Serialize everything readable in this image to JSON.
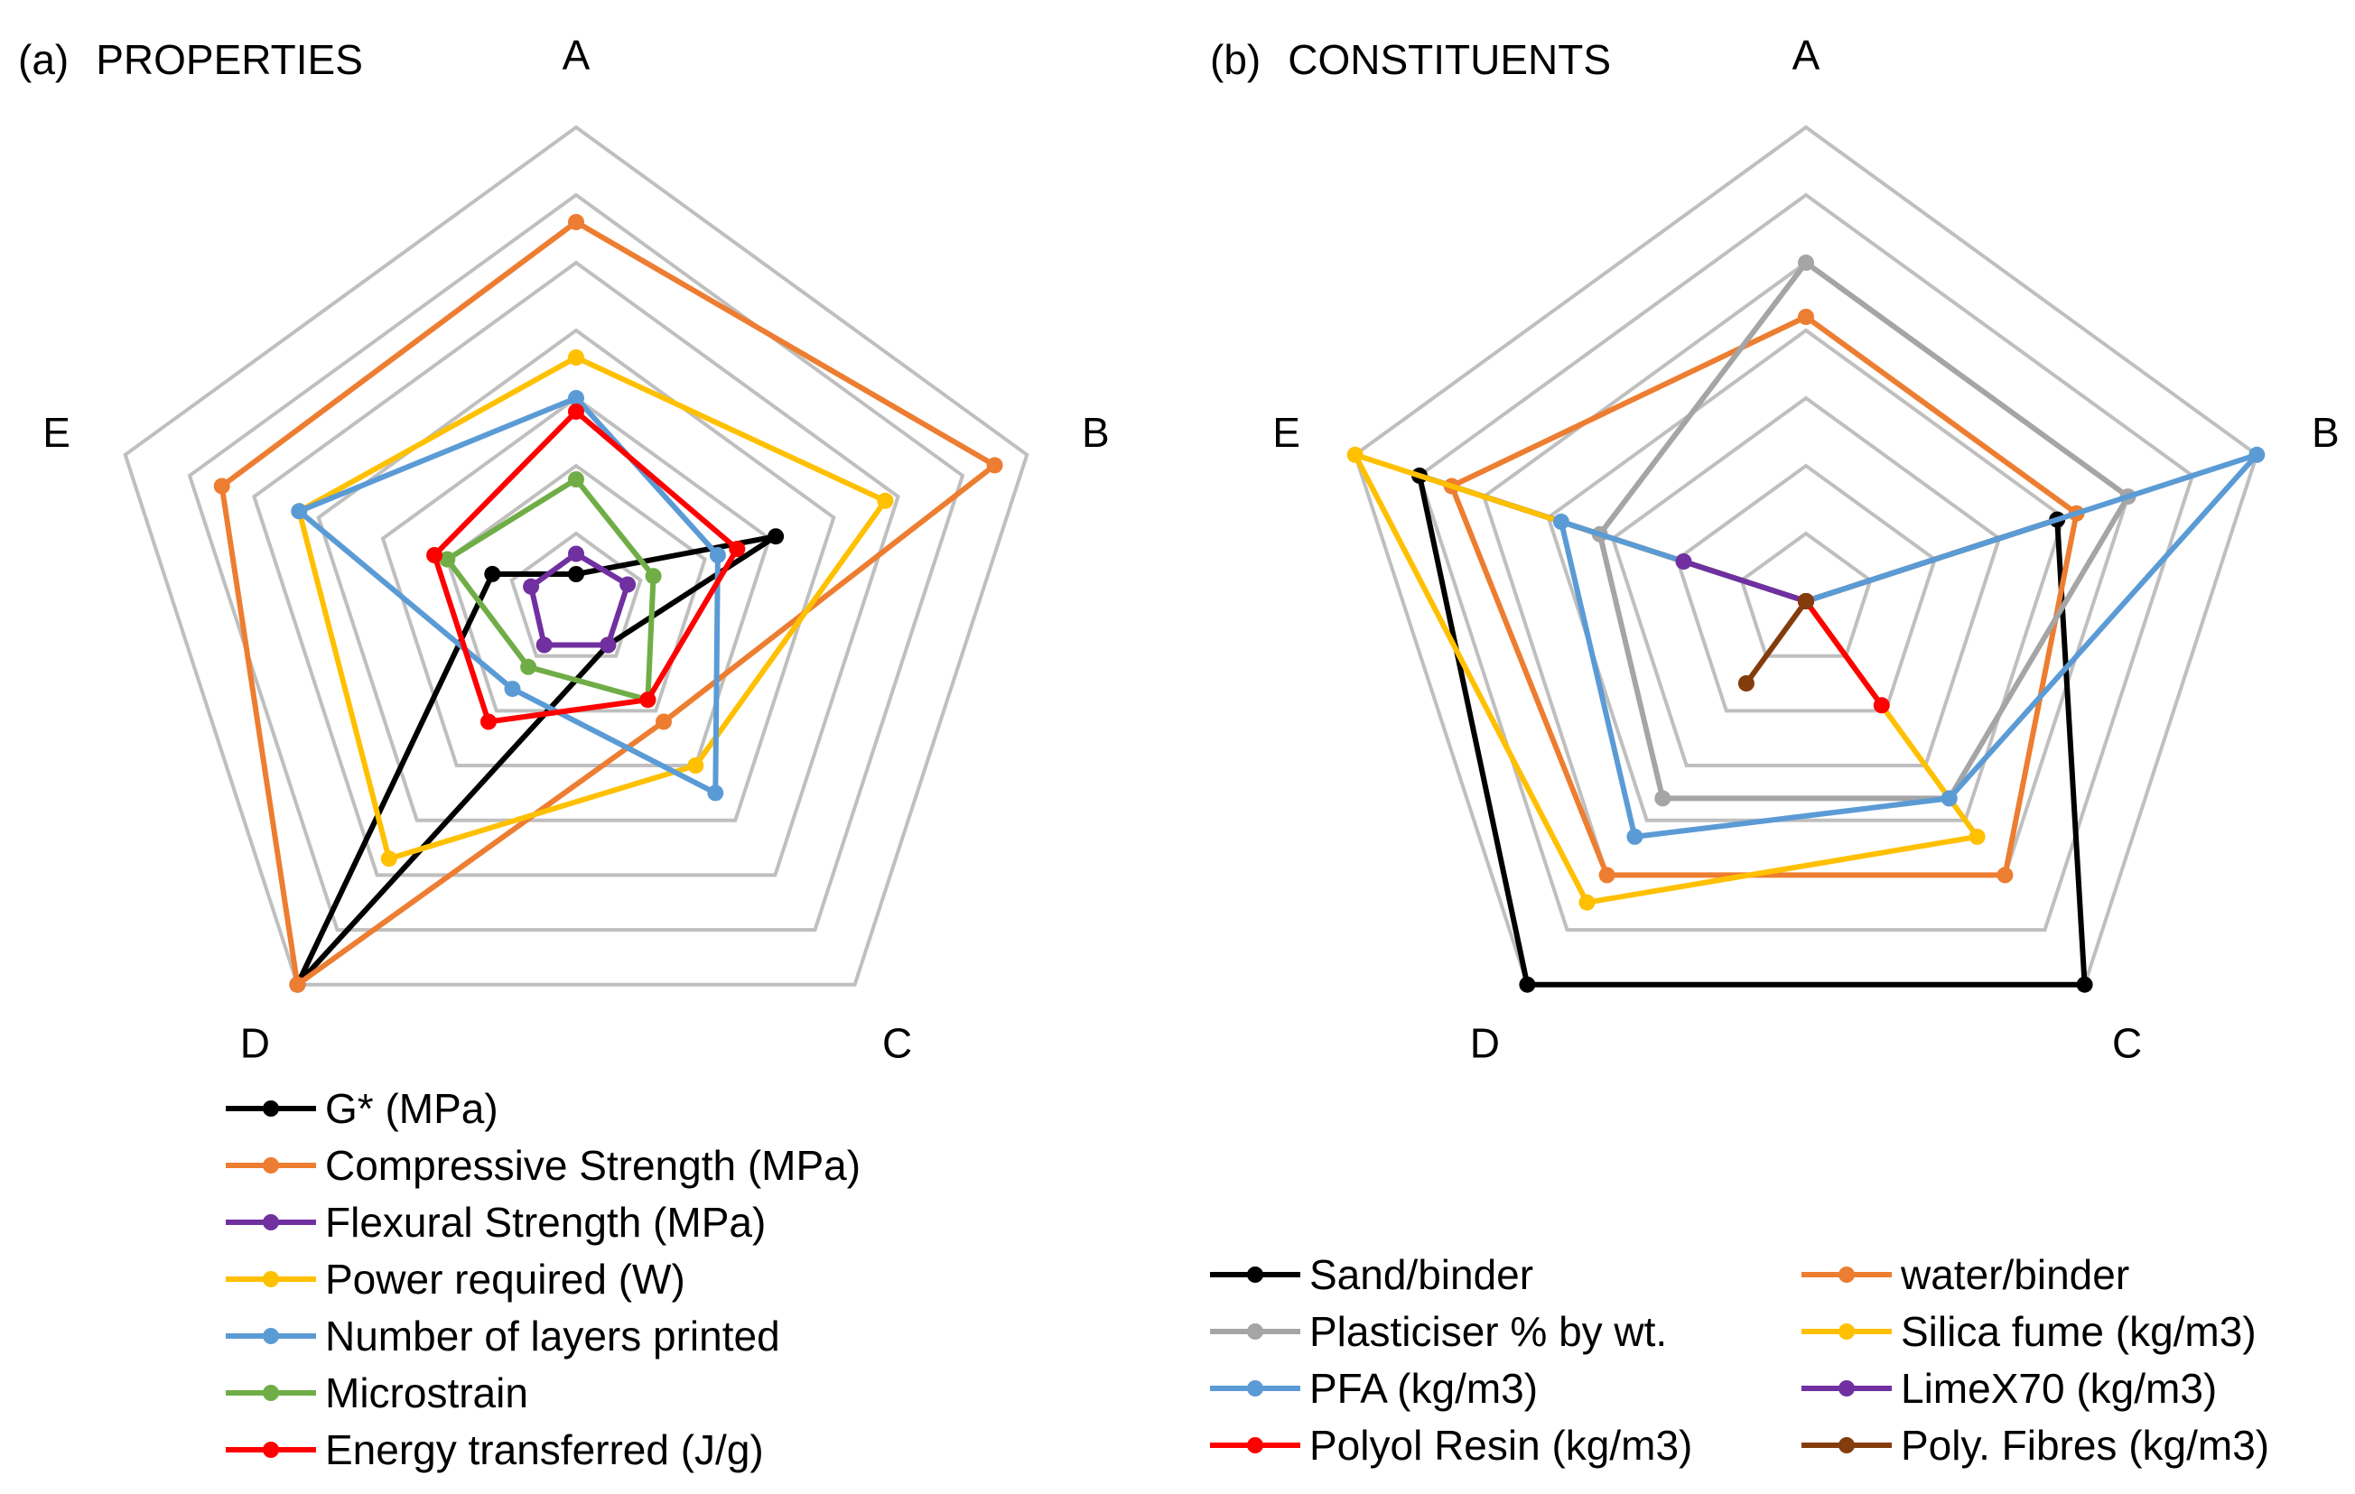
{
  "chart_data": [
    {
      "type": "radar",
      "panel_label": "(a)",
      "title": "PROPERTIES",
      "axes": [
        "A",
        "B",
        "C",
        "D",
        "E"
      ],
      "rings": 7,
      "range": [
        0,
        7
      ],
      "series": [
        {
          "name": "G* (MPa)",
          "color": "#000000",
          "values": [
            0.4,
            3.1,
            0.8,
            7.0,
            1.3
          ]
        },
        {
          "name": "Compressive Strength (MPa)",
          "color": "#ED7D31",
          "values": [
            5.6,
            6.5,
            2.2,
            7.0,
            5.5
          ]
        },
        {
          "name": "Flexural Strength (MPa)",
          "color": "#7030A0",
          "values": [
            0.7,
            0.8,
            0.8,
            0.8,
            0.7
          ]
        },
        {
          "name": "Power required (W)",
          "color": "#FFC000",
          "values": [
            3.6,
            4.8,
            3.0,
            4.7,
            4.3
          ]
        },
        {
          "name": "Number of layers printed",
          "color": "#5B9BD5",
          "values": [
            3.0,
            2.2,
            3.5,
            1.6,
            4.3
          ]
        },
        {
          "name": "Microstrain",
          "color": "#70AD47",
          "values": [
            1.8,
            1.2,
            1.8,
            1.2,
            2.0
          ]
        },
        {
          "name": "Energy transferred (J/g)",
          "color": "#FF0000",
          "values": [
            2.8,
            2.5,
            1.8,
            2.2,
            2.2
          ]
        }
      ]
    },
    {
      "type": "radar",
      "panel_label": "(b)",
      "title": "CONSTITUENTS",
      "axes": [
        "A",
        "B",
        "C",
        "D",
        "E"
      ],
      "rings": 7,
      "range": [
        0,
        7
      ],
      "series": [
        {
          "name": "Sand/binder",
          "color": "#000000",
          "values": [
            0,
            3.9,
            7.0,
            7.0,
            6.0
          ]
        },
        {
          "name": "water/binder",
          "color": "#ED7D31",
          "values": [
            4.2,
            4.2,
            5.0,
            5.0,
            5.5
          ]
        },
        {
          "name": "Plasticiser % by wt.",
          "color": "#A5A5A5",
          "values": [
            5.0,
            5.0,
            3.6,
            3.6,
            3.2
          ]
        },
        {
          "name": "Silica fume (kg/m3)",
          "color": "#FFC000",
          "values": [
            0,
            0,
            4.3,
            5.5,
            7.0
          ]
        },
        {
          "name": "PFA (kg/m3)",
          "color": "#5B9BD5",
          "values": [
            0,
            7.0,
            3.6,
            4.3,
            3.8
          ]
        },
        {
          "name": "LimeX70 (kg/m3)",
          "color": "#7030A0",
          "values": [
            0,
            0,
            0,
            0,
            1.9
          ]
        },
        {
          "name": "Polyol Resin (kg/m3)",
          "color": "#FF0000",
          "values": [
            0,
            0,
            1.9,
            0,
            0
          ]
        },
        {
          "name": "Poly. Fibres (kg/m3)",
          "color": "#843C0C",
          "values": [
            0,
            0,
            0,
            1.5,
            0
          ]
        }
      ]
    }
  ]
}
